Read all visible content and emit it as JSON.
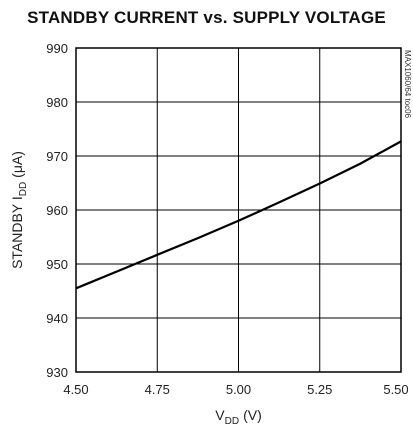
{
  "chart_data": {
    "type": "line",
    "title": "STANDBY CURRENT vs. SUPPLY VOLTAGE",
    "xlabel": "V",
    "xlabel_sub": "DD",
    "xlabel_unit": "(V)",
    "ylabel": "STANDBY I",
    "ylabel_sub": "DD",
    "ylabel_unit": "(μA)",
    "side_code": "MAX1060/64 toc06",
    "xlim": [
      4.5,
      5.5
    ],
    "ylim": [
      930,
      990
    ],
    "x_ticks": [
      {
        "value": 4.5,
        "label": "4.50"
      },
      {
        "value": 4.75,
        "label": "4.75"
      },
      {
        "value": 5.0,
        "label": "5.00"
      },
      {
        "value": 5.25,
        "label": "5.25"
      },
      {
        "value": 5.5,
        "label": "5.50"
      }
    ],
    "y_ticks": [
      {
        "value": 930,
        "label": "930"
      },
      {
        "value": 940,
        "label": "940"
      },
      {
        "value": 950,
        "label": "950"
      },
      {
        "value": 960,
        "label": "960"
      },
      {
        "value": 970,
        "label": "970"
      },
      {
        "value": 980,
        "label": "980"
      },
      {
        "value": 990,
        "label": "990"
      }
    ],
    "grid": true,
    "series": [
      {
        "x": [
          4.5,
          4.625,
          4.75,
          4.875,
          5.0,
          5.125,
          5.25,
          5.375,
          5.5
        ],
        "y": [
          945.5,
          948.6,
          951.7,
          954.8,
          958.0,
          961.4,
          964.9,
          968.6,
          972.7
        ]
      }
    ]
  }
}
